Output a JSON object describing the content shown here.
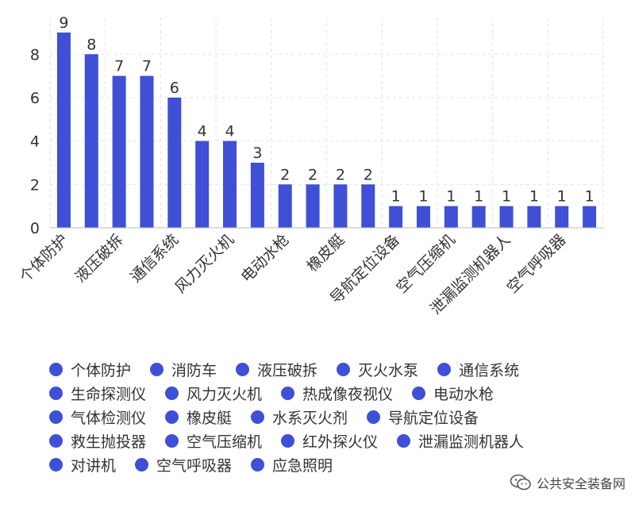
{
  "chart_data": {
    "type": "bar",
    "categories": [
      "个体防护",
      "消防车",
      "液压破拆",
      "灭火水泵",
      "通信系统",
      "生命探测仪",
      "风力灭火机",
      "热成像夜视仪",
      "电动水枪",
      "气体检测仪",
      "橡皮艇",
      "水系灭火剂",
      "导航定位设备",
      "救生抛投器",
      "空气压缩机",
      "红外探火仪",
      "泄漏监测机器人",
      "对讲机",
      "空气呼吸器",
      "应急照明"
    ],
    "values": [
      9,
      8,
      7,
      7,
      6,
      4,
      4,
      3,
      2,
      2,
      2,
      2,
      1,
      1,
      1,
      1,
      1,
      1,
      1,
      1
    ],
    "shown_tick_labels": [
      "个体防护",
      "液压破拆",
      "通信系统",
      "风力灭火机",
      "电动水枪",
      "橡皮艇",
      "导航定位设备",
      "空气压缩机",
      "泄漏监测机器人",
      "空气呼吸器"
    ],
    "yticks": [
      0,
      2,
      4,
      6,
      8
    ],
    "ylim": [
      0,
      9.4
    ],
    "grid": true,
    "data_labels": true,
    "legend_position": "bottom",
    "title": "",
    "xlabel": "",
    "ylabel": "",
    "bar_color": "#3f4fd6"
  },
  "watermark": {
    "text": "公共安全装备网",
    "icon": "wechat-icon"
  }
}
